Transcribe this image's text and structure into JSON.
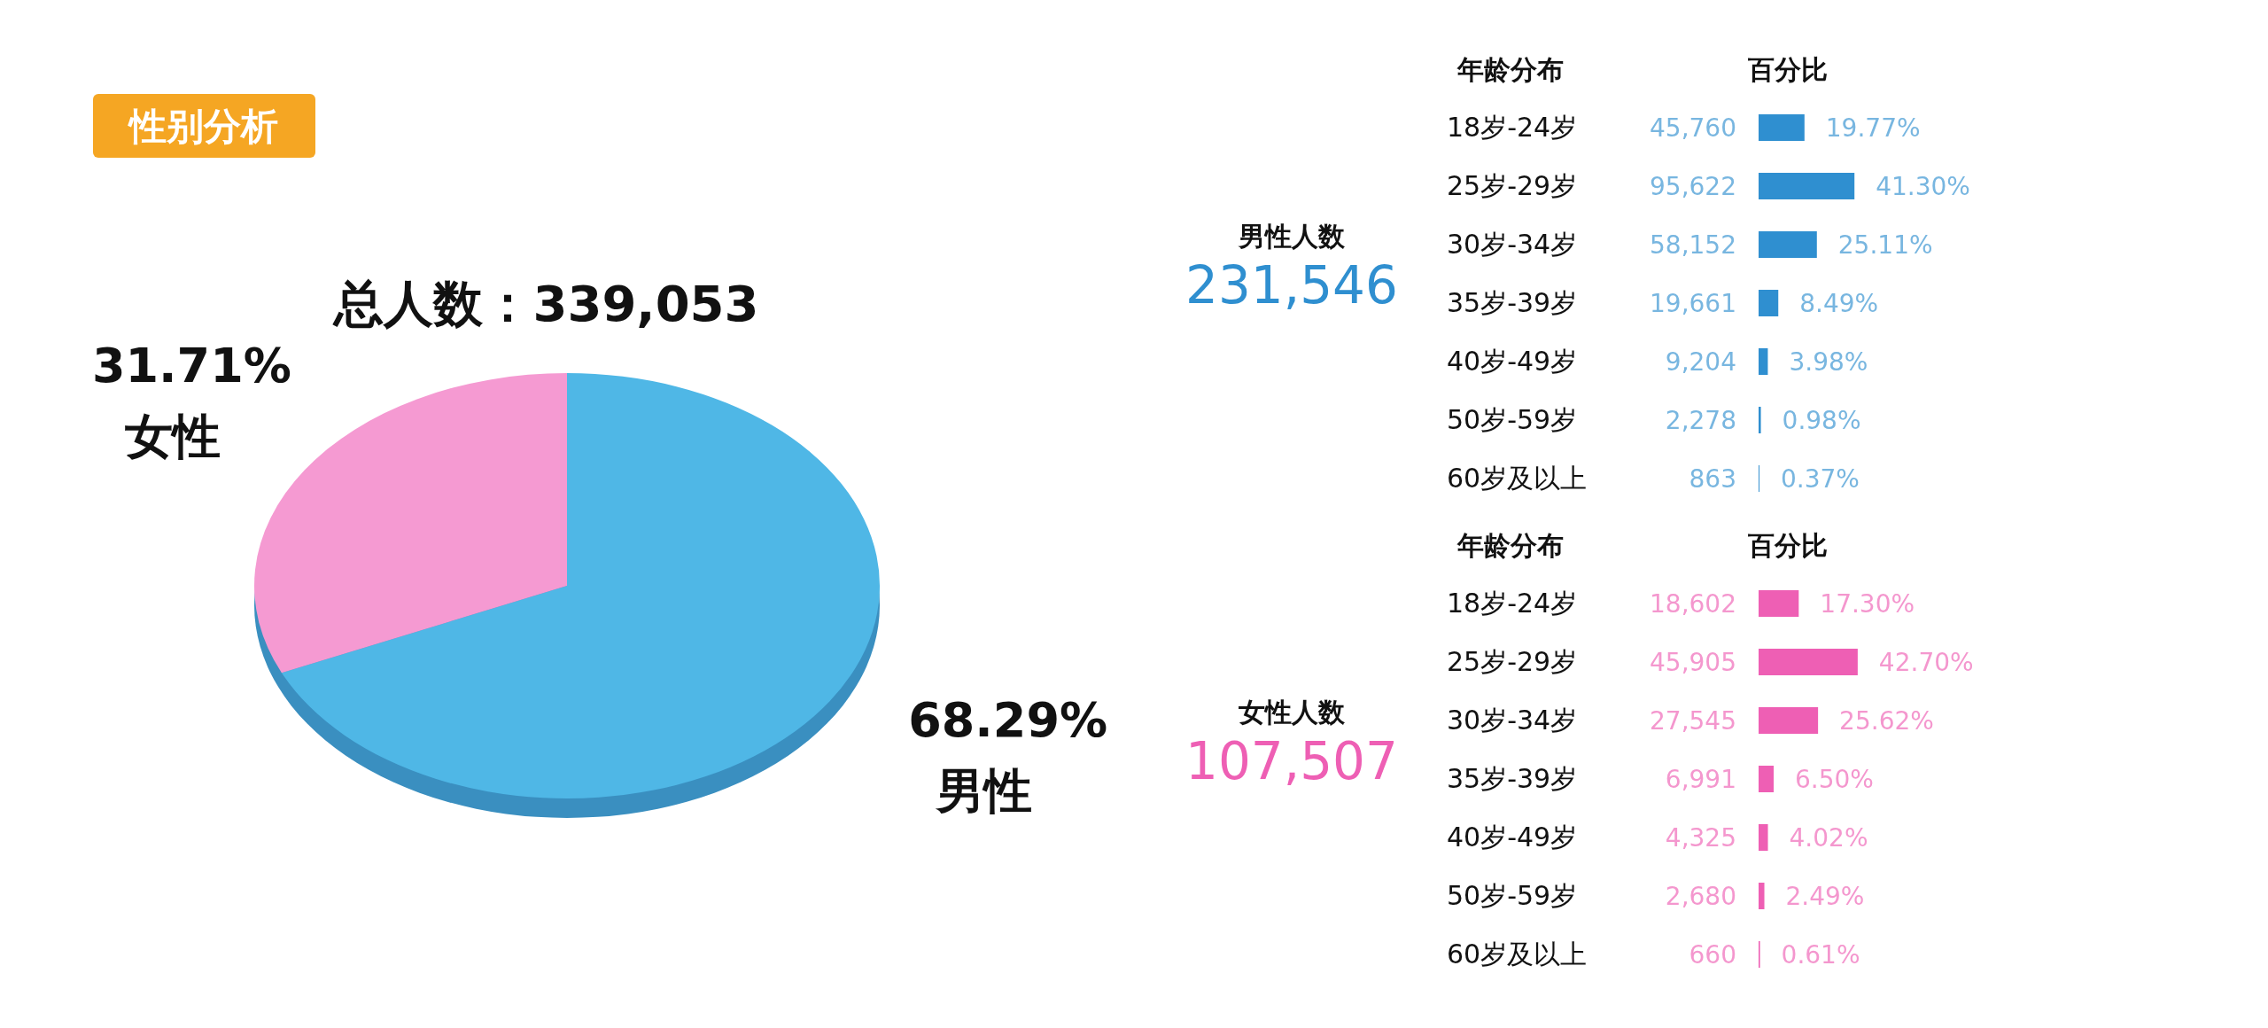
{
  "chart_data": [
    {
      "type": "pie",
      "title": "性别分析",
      "subtitle": "总人数：339,053",
      "categories": [
        "女性",
        "男性"
      ],
      "values": [
        31.71,
        68.29
      ],
      "colors": [
        "#f59ad2",
        "#4fb7e6"
      ],
      "value_labels": [
        "31.71%",
        "68.29%"
      ]
    },
    {
      "type": "bar",
      "orientation": "horizontal",
      "title": "男性人数",
      "subtitle": "231,546",
      "ylabel": "年龄分布",
      "xlabel": "百分比",
      "categories": [
        "18岁-24岁",
        "25岁-29岁",
        "30岁-34岁",
        "35岁-39岁",
        "40岁-49岁",
        "50岁-59岁",
        "60岁及以上"
      ],
      "values": [
        19.77,
        41.3,
        25.11,
        8.49,
        3.98,
        0.98,
        0.37
      ],
      "color": "#2f8fd0",
      "value_labels": [
        "19.77%",
        "41.30%",
        "25.11%",
        "8.49%",
        "3.98%",
        "0.98%",
        "0.37%"
      ],
      "annotations": [
        "45,760",
        "95,622",
        "58,152",
        "19,661",
        "9,204",
        "2,278",
        "863"
      ]
    },
    {
      "type": "bar",
      "orientation": "horizontal",
      "title": "女性人数",
      "subtitle": "107,507",
      "ylabel": "年龄分布",
      "xlabel": "百分比",
      "categories": [
        "18岁-24岁",
        "25岁-29岁",
        "30岁-34岁",
        "35岁-39岁",
        "40岁-49岁",
        "50岁-59岁",
        "60岁及以上"
      ],
      "values": [
        17.3,
        42.7,
        25.62,
        6.5,
        4.02,
        2.49,
        0.61
      ],
      "color": "#ee5fb4",
      "value_labels": [
        "17.30%",
        "42.70%",
        "25.62%",
        "6.50%",
        "4.02%",
        "2.49%",
        "0.61%"
      ],
      "annotations": [
        "18,602",
        "45,905",
        "27,545",
        "6,991",
        "4,325",
        "2,680",
        "660"
      ]
    }
  ]
}
